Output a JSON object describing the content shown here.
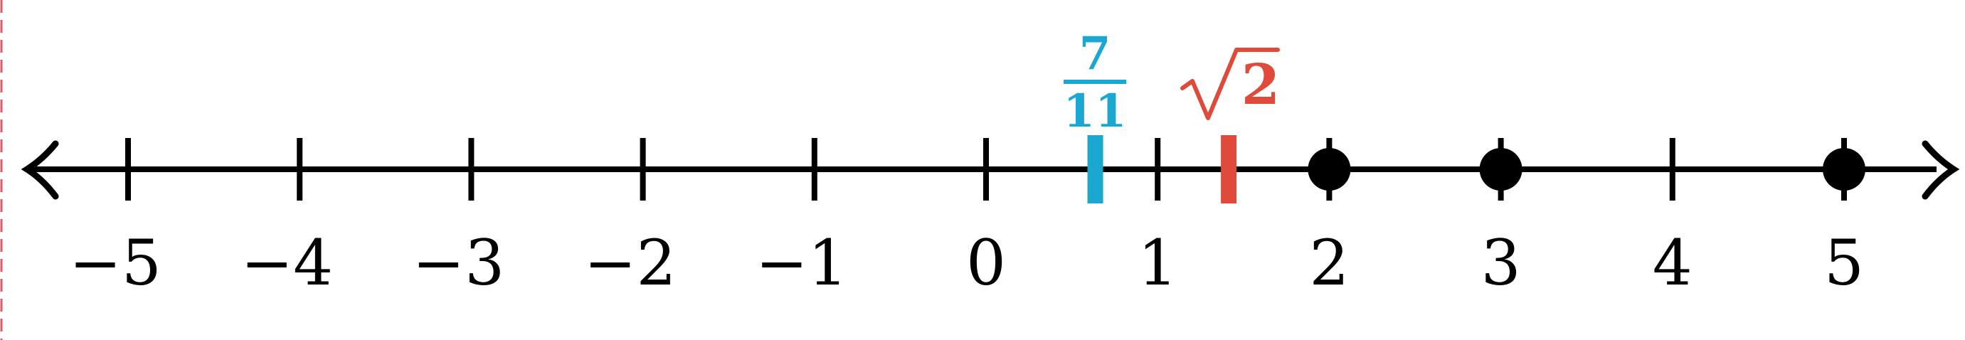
{
  "number_line": {
    "ticks": [
      -5,
      -4,
      -3,
      -2,
      -1,
      0,
      1,
      2,
      3,
      4,
      5
    ],
    "tick_labels": [
      "−5",
      "−4",
      "−3",
      "−2",
      "−1",
      "0",
      "1",
      "2",
      "3",
      "4",
      "5"
    ],
    "dots": [
      2,
      3,
      5
    ],
    "markers": [
      {
        "value": 0.6364,
        "numerator": "7",
        "denominator": "11",
        "color": "#1aa8d0"
      },
      {
        "value": 1.4142,
        "radicand": "2",
        "color": "#e04a3a"
      }
    ],
    "arrows": "both",
    "line_color": "#000000"
  }
}
